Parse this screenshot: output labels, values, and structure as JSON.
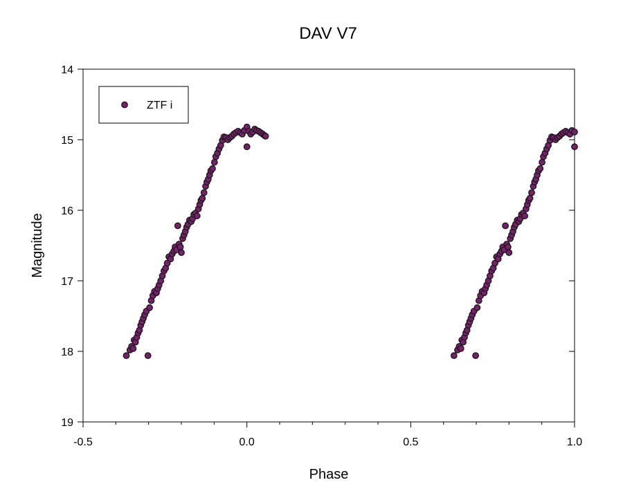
{
  "chart_data": {
    "type": "scatter",
    "title": "DAV V7",
    "xlabel": "Phase",
    "ylabel": "Magnitude",
    "xlim": [
      -0.5,
      1.0
    ],
    "ylim": [
      14,
      19
    ],
    "y_inverted": true,
    "grid": false,
    "legend_position": "top-left",
    "x_ticks": [
      "-0.5",
      "0.0",
      "0.5",
      "1.0"
    ],
    "y_ticks": [
      "14",
      "15",
      "16",
      "17",
      "18",
      "19"
    ],
    "marker_color": "#7a1f6e",
    "marker_edge": "#1a1a1a",
    "series": [
      {
        "name": "ZTF i",
        "points": [
          [
            -0.368,
            18.06
          ],
          [
            -0.357,
            17.98
          ],
          [
            -0.352,
            17.93
          ],
          [
            -0.347,
            17.96
          ],
          [
            -0.344,
            17.84
          ],
          [
            -0.34,
            17.87
          ],
          [
            -0.336,
            17.8
          ],
          [
            -0.332,
            17.74
          ],
          [
            -0.328,
            17.7
          ],
          [
            -0.324,
            17.63
          ],
          [
            -0.32,
            17.58
          ],
          [
            -0.316,
            17.53
          ],
          [
            -0.312,
            17.48
          ],
          [
            -0.307,
            17.43
          ],
          [
            -0.302,
            18.06
          ],
          [
            -0.297,
            17.38
          ],
          [
            -0.292,
            17.28
          ],
          [
            -0.287,
            17.21
          ],
          [
            -0.282,
            17.15
          ],
          [
            -0.276,
            17.17
          ],
          [
            -0.272,
            17.11
          ],
          [
            -0.268,
            17.06
          ],
          [
            -0.263,
            17.0
          ],
          [
            -0.258,
            16.93
          ],
          [
            -0.253,
            16.86
          ],
          [
            -0.248,
            16.82
          ],
          [
            -0.243,
            16.75
          ],
          [
            -0.238,
            16.66
          ],
          [
            -0.233,
            16.69
          ],
          [
            -0.228,
            16.62
          ],
          [
            -0.223,
            16.58
          ],
          [
            -0.219,
            16.52
          ],
          [
            -0.215,
            16.56
          ],
          [
            -0.211,
            16.22
          ],
          [
            -0.207,
            16.48
          ],
          [
            -0.203,
            16.52
          ],
          [
            -0.2,
            16.6
          ],
          [
            -0.196,
            16.4
          ],
          [
            -0.192,
            16.35
          ],
          [
            -0.188,
            16.3
          ],
          [
            -0.184,
            16.24
          ],
          [
            -0.18,
            16.2
          ],
          [
            -0.175,
            16.14
          ],
          [
            -0.17,
            16.16
          ],
          [
            -0.166,
            16.12
          ],
          [
            -0.162,
            16.06
          ],
          [
            -0.157,
            16.04
          ],
          [
            -0.152,
            16.08
          ],
          [
            -0.148,
            15.98
          ],
          [
            -0.144,
            15.92
          ],
          [
            -0.14,
            15.86
          ],
          [
            -0.136,
            15.83
          ],
          [
            -0.131,
            15.75
          ],
          [
            -0.126,
            15.66
          ],
          [
            -0.122,
            15.6
          ],
          [
            -0.118,
            15.56
          ],
          [
            -0.114,
            15.5
          ],
          [
            -0.11,
            15.44
          ],
          [
            -0.105,
            15.41
          ],
          [
            -0.099,
            15.32
          ],
          [
            -0.095,
            15.24
          ],
          [
            -0.09,
            15.19
          ],
          [
            -0.085,
            15.13
          ],
          [
            -0.08,
            15.08
          ],
          [
            -0.075,
            15.01
          ],
          [
            -0.07,
            14.96
          ],
          [
            -0.064,
            14.97
          ],
          [
            -0.058,
            15.0
          ],
          [
            -0.052,
            14.97
          ],
          [
            -0.046,
            14.95
          ],
          [
            -0.04,
            14.92
          ],
          [
            -0.034,
            14.9
          ],
          [
            -0.027,
            14.88
          ],
          [
            -0.02,
            14.9
          ],
          [
            -0.014,
            14.92
          ],
          [
            -0.008,
            14.87
          ],
          [
            0.0,
            15.1
          ],
          [
            0.0,
            14.82
          ],
          [
            0.006,
            14.88
          ],
          [
            0.012,
            14.92
          ],
          [
            0.018,
            14.89
          ],
          [
            0.024,
            14.85
          ],
          [
            0.03,
            14.87
          ],
          [
            0.036,
            14.88
          ],
          [
            0.042,
            14.9
          ],
          [
            0.048,
            14.92
          ],
          [
            0.054,
            14.94
          ],
          [
            0.057,
            14.95
          ],
          [
            0.632,
            18.06
          ],
          [
            0.643,
            17.98
          ],
          [
            0.648,
            17.93
          ],
          [
            0.653,
            17.96
          ],
          [
            0.656,
            17.84
          ],
          [
            0.66,
            17.87
          ],
          [
            0.664,
            17.8
          ],
          [
            0.668,
            17.74
          ],
          [
            0.672,
            17.7
          ],
          [
            0.676,
            17.63
          ],
          [
            0.68,
            17.58
          ],
          [
            0.684,
            17.53
          ],
          [
            0.688,
            17.48
          ],
          [
            0.693,
            17.43
          ],
          [
            0.698,
            18.06
          ],
          [
            0.703,
            17.38
          ],
          [
            0.708,
            17.28
          ],
          [
            0.713,
            17.21
          ],
          [
            0.718,
            17.15
          ],
          [
            0.724,
            17.17
          ],
          [
            0.728,
            17.11
          ],
          [
            0.732,
            17.06
          ],
          [
            0.737,
            17.0
          ],
          [
            0.742,
            16.93
          ],
          [
            0.747,
            16.86
          ],
          [
            0.752,
            16.82
          ],
          [
            0.757,
            16.75
          ],
          [
            0.762,
            16.66
          ],
          [
            0.767,
            16.69
          ],
          [
            0.772,
            16.62
          ],
          [
            0.777,
            16.58
          ],
          [
            0.781,
            16.52
          ],
          [
            0.785,
            16.56
          ],
          [
            0.789,
            16.22
          ],
          [
            0.793,
            16.48
          ],
          [
            0.797,
            16.52
          ],
          [
            0.8,
            16.6
          ],
          [
            0.804,
            16.4
          ],
          [
            0.808,
            16.35
          ],
          [
            0.812,
            16.3
          ],
          [
            0.816,
            16.24
          ],
          [
            0.82,
            16.2
          ],
          [
            0.825,
            16.14
          ],
          [
            0.83,
            16.16
          ],
          [
            0.834,
            16.12
          ],
          [
            0.838,
            16.06
          ],
          [
            0.843,
            16.04
          ],
          [
            0.848,
            16.08
          ],
          [
            0.852,
            15.98
          ],
          [
            0.856,
            15.92
          ],
          [
            0.86,
            15.86
          ],
          [
            0.864,
            15.83
          ],
          [
            0.869,
            15.75
          ],
          [
            0.874,
            15.66
          ],
          [
            0.878,
            15.6
          ],
          [
            0.882,
            15.56
          ],
          [
            0.886,
            15.5
          ],
          [
            0.89,
            15.44
          ],
          [
            0.895,
            15.41
          ],
          [
            0.901,
            15.32
          ],
          [
            0.905,
            15.24
          ],
          [
            0.91,
            15.19
          ],
          [
            0.915,
            15.13
          ],
          [
            0.92,
            15.08
          ],
          [
            0.925,
            15.01
          ],
          [
            0.93,
            14.96
          ],
          [
            0.936,
            14.97
          ],
          [
            0.942,
            15.0
          ],
          [
            0.948,
            14.97
          ],
          [
            0.954,
            14.95
          ],
          [
            0.96,
            14.92
          ],
          [
            0.966,
            14.9
          ],
          [
            0.973,
            14.88
          ],
          [
            0.98,
            14.9
          ],
          [
            0.986,
            14.92
          ],
          [
            0.992,
            14.87
          ],
          [
            1.0,
            15.1
          ],
          [
            1.0,
            14.89
          ]
        ]
      }
    ]
  }
}
